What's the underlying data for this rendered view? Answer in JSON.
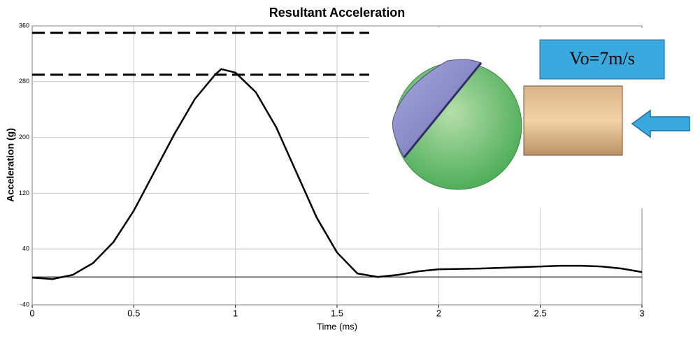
{
  "chart_data": {
    "type": "line",
    "title": "Resultant Acceleration",
    "x_label": "Time (ms)",
    "y_label": "Acceleration (g)",
    "x": [
      0,
      0.1,
      0.2,
      0.3,
      0.4,
      0.5,
      0.6,
      0.7,
      0.8,
      0.9,
      0.93,
      1.0,
      1.1,
      1.2,
      1.3,
      1.4,
      1.5,
      1.6,
      1.7,
      1.8,
      1.9,
      2.0,
      2.2,
      2.4,
      2.6,
      2.7,
      2.8,
      2.9,
      3.0
    ],
    "series": [
      {
        "name": "Resultant Acceleration",
        "color": "#000000",
        "values": [
          -1,
          -3,
          3,
          20,
          50,
          95,
          150,
          205,
          255,
          290,
          298,
          293,
          265,
          215,
          150,
          85,
          35,
          5,
          0,
          3,
          8,
          11,
          12,
          14,
          16,
          16,
          15,
          12,
          7
        ]
      }
    ],
    "xlim": [
      0,
      3
    ],
    "xticks": [
      0,
      0.5,
      1,
      1.5,
      2,
      2.5,
      3
    ],
    "ylim": [
      -40,
      360
    ],
    "yticks": [
      -40,
      40,
      120,
      200,
      280,
      360
    ],
    "grid": true,
    "reference_lines": [
      {
        "value": 350,
        "style": "dashed"
      },
      {
        "value": 290,
        "style": "dashed"
      },
      {
        "value": 0,
        "style": "solid"
      }
    ],
    "annotation": "Vo=7m/s"
  }
}
